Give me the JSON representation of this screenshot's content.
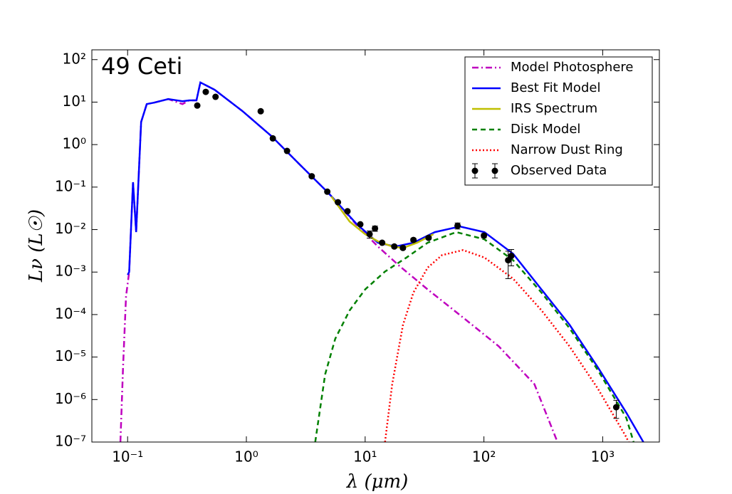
{
  "chart_data": {
    "type": "line",
    "annotation": "49 Ceti",
    "x_label": "λ (μm)",
    "y_label": "Lν (L☉)",
    "xscale": "log",
    "yscale": "log",
    "xlim": [
      0.05,
      3000
    ],
    "ylim": [
      1e-07,
      170
    ],
    "xticks": [
      {
        "value": 0.1,
        "label": "10⁻¹"
      },
      {
        "value": 1,
        "label": "10⁰"
      },
      {
        "value": 10,
        "label": "10¹"
      },
      {
        "value": 100,
        "label": "10²"
      },
      {
        "value": 1000,
        "label": "10³"
      }
    ],
    "yticks": [
      {
        "value": 1e-07,
        "label": "10⁻⁷"
      },
      {
        "value": 1e-06,
        "label": "10⁻⁶"
      },
      {
        "value": 1e-05,
        "label": "10⁻⁵"
      },
      {
        "value": 0.0001,
        "label": "10⁻⁴"
      },
      {
        "value": 0.001,
        "label": "10⁻³"
      },
      {
        "value": 0.01,
        "label": "10⁻²"
      },
      {
        "value": 0.1,
        "label": "10⁻¹"
      },
      {
        "value": 1,
        "label": "10⁰"
      },
      {
        "value": 10,
        "label": "10¹"
      },
      {
        "value": 100,
        "label": "10²"
      }
    ],
    "grid": false,
    "legend": "upper right",
    "series": [
      {
        "name": "Model Photosphere",
        "color": "#bf00bf",
        "linestyle": "dashdot",
        "x": [
          0.087,
          0.0915,
          0.097,
          0.103,
          0.111,
          0.118,
          0.13,
          0.145,
          0.167,
          0.22,
          0.29,
          0.33,
          0.38,
          0.41,
          0.54,
          0.93,
          1.62,
          2.81,
          4.9,
          8.5,
          12.8,
          19.4,
          33.6,
          66.7,
          133,
          266,
          416
        ],
        "values": [
          1e-07,
          5.7e-06,
          0.00027,
          0.001,
          0.13,
          0.0087,
          3.4,
          9,
          9.7,
          11.8,
          9,
          11,
          11,
          29,
          19.5,
          6.1,
          1.6,
          0.34,
          0.073,
          0.0128,
          0.004,
          0.0014,
          0.00039,
          8.5e-05,
          1.8e-05,
          2.3e-06,
          1e-07
        ]
      },
      {
        "name": "Best Fit Model",
        "color": "#0000ff",
        "linestyle": "solid",
        "x": [
          0.1,
          0.103,
          0.111,
          0.118,
          0.13,
          0.145,
          0.167,
          0.22,
          0.29,
          0.33,
          0.38,
          0.41,
          0.54,
          0.93,
          1.62,
          2.81,
          4.9,
          8.5,
          12.8,
          18,
          25.5,
          38.6,
          62.6,
          101,
          176,
          305,
          525,
          911,
          1582,
          2200
        ],
        "values": [
          0.00086,
          0.001,
          0.13,
          0.0087,
          3.4,
          9,
          9.7,
          11.8,
          10.5,
          11,
          11,
          29,
          19.5,
          6.1,
          1.6,
          0.34,
          0.073,
          0.0135,
          0.0049,
          0.004,
          0.0049,
          0.0087,
          0.0118,
          0.0087,
          0.0027,
          0.00039,
          5.8e-05,
          5.7e-06,
          4.9e-07,
          1e-07
        ]
      },
      {
        "name": "IRS Spectrum",
        "color": "#bfbf00",
        "linestyle": "solid",
        "x": [
          5.2,
          7.4,
          10,
          12.8,
          16.9,
          20.8,
          27.4,
          37.5
        ],
        "values": [
          0.06,
          0.0155,
          0.0078,
          0.0053,
          0.004,
          0.0037,
          0.0049,
          0.0078
        ]
      },
      {
        "name": "Disk Model",
        "color": "#008000",
        "linestyle": "dashed",
        "x": [
          3.8,
          4.6,
          5.6,
          7.4,
          10,
          14.7,
          22.3,
          33.6,
          58.4,
          101,
          176,
          305,
          525,
          911,
          1582,
          1820
        ],
        "values": [
          1e-07,
          3.9e-06,
          2.7e-05,
          0.000125,
          0.00039,
          0.00103,
          0.0022,
          0.0049,
          0.0087,
          0.0059,
          0.0019,
          0.00033,
          4.8e-05,
          4.9e-06,
          3.7e-07,
          1e-07
        ]
      },
      {
        "name": "Narrow Dust Ring",
        "color": "#ff0000",
        "linestyle": "dotted",
        "x": [
          14.7,
          16.9,
          20.8,
          25.5,
          33.6,
          44.3,
          66.7,
          101,
          176,
          305,
          525,
          911,
          1582,
          1650
        ],
        "values": [
          1e-07,
          2.3e-06,
          5.7e-05,
          0.00033,
          0.00127,
          0.0025,
          0.0033,
          0.0022,
          0.0007,
          0.000126,
          1.8e-05,
          1.8e-06,
          1.3e-07,
          1e-07
        ]
      },
      {
        "name": "Observed Data",
        "color": "#000000",
        "marker": "o",
        "x": [
          0.386,
          0.455,
          0.55,
          1.32,
          1.67,
          2.2,
          3.55,
          4.8,
          5.9,
          7.1,
          9.1,
          10.9,
          12.1,
          13.9,
          17.6,
          20.8,
          25.5,
          34.2,
          60,
          100,
          160,
          170,
          1300
        ],
        "values": [
          8.3,
          17.4,
          13.3,
          6.1,
          1.4,
          0.71,
          0.18,
          0.078,
          0.044,
          0.027,
          0.0133,
          0.0078,
          0.0106,
          0.0049,
          0.004,
          0.0037,
          0.0057,
          0.0064,
          0.0123,
          0.0072,
          0.0019,
          0.0024,
          6.6e-07
        ],
        "errors": [
          0.4,
          0.9,
          0.7,
          0.3,
          0.07,
          0.04,
          0.009,
          0.004,
          0.002,
          0.0014,
          0.0007,
          0.0015,
          0.0015,
          0.0003,
          0.0003,
          0.0003,
          0.0005,
          0.0005,
          0.002,
          0.0008,
          0.0012,
          0.001,
          3e-07
        ]
      }
    ]
  }
}
